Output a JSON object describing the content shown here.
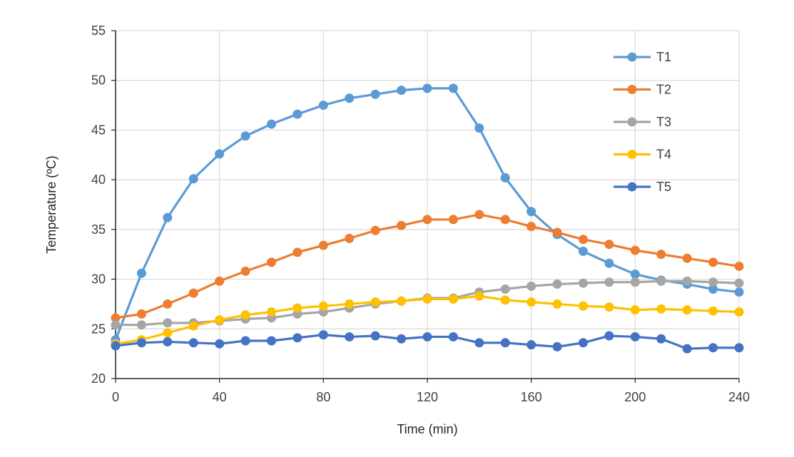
{
  "chart_data": {
    "type": "line",
    "title": "",
    "xlabel": "Time (min)",
    "ylabel": "Temperature (ºC)",
    "xlim": [
      0,
      240
    ],
    "ylim": [
      20,
      55
    ],
    "xticks": [
      0,
      40,
      80,
      120,
      160,
      200,
      240
    ],
    "yticks": [
      20,
      25,
      30,
      35,
      40,
      45,
      50,
      55
    ],
    "grid": true,
    "legend_position": "right",
    "x": [
      0,
      10,
      20,
      30,
      40,
      50,
      60,
      70,
      80,
      90,
      100,
      110,
      120,
      130,
      140,
      150,
      160,
      170,
      180,
      190,
      200,
      210,
      220,
      230,
      240
    ],
    "series": [
      {
        "name": "T1",
        "color": "#5B9BD5",
        "values": [
          23.9,
          30.6,
          36.2,
          40.1,
          42.6,
          44.4,
          45.6,
          46.6,
          47.5,
          48.2,
          48.6,
          49.0,
          49.2,
          49.2,
          45.2,
          40.2,
          36.8,
          34.5,
          32.8,
          31.6,
          30.5,
          29.9,
          29.5,
          29.0,
          28.7
        ]
      },
      {
        "name": "T2",
        "color": "#ED7D31",
        "values": [
          26.1,
          26.5,
          27.5,
          28.6,
          29.8,
          30.8,
          31.7,
          32.7,
          33.4,
          34.1,
          34.9,
          35.4,
          36.0,
          36.0,
          36.5,
          36.0,
          35.3,
          34.7,
          34.0,
          33.5,
          32.9,
          32.5,
          32.1,
          31.7,
          31.3
        ]
      },
      {
        "name": "T3",
        "color": "#A5A5A5",
        "values": [
          25.4,
          25.4,
          25.6,
          25.6,
          25.8,
          26.0,
          26.1,
          26.5,
          26.7,
          27.1,
          27.5,
          27.8,
          28.1,
          28.1,
          28.7,
          29.0,
          29.3,
          29.5,
          29.6,
          29.7,
          29.7,
          29.8,
          29.8,
          29.7,
          29.6
        ]
      },
      {
        "name": "T4",
        "color": "#FFC000",
        "values": [
          23.5,
          23.9,
          24.6,
          25.3,
          25.9,
          26.4,
          26.7,
          27.1,
          27.3,
          27.5,
          27.7,
          27.8,
          28.0,
          28.0,
          28.3,
          27.9,
          27.7,
          27.5,
          27.3,
          27.2,
          26.9,
          27.0,
          26.9,
          26.8,
          26.7
        ]
      },
      {
        "name": "T5",
        "color": "#4472C4",
        "values": [
          23.3,
          23.6,
          23.7,
          23.6,
          23.5,
          23.8,
          23.8,
          24.1,
          24.4,
          24.2,
          24.3,
          24.0,
          24.2,
          24.2,
          23.6,
          23.6,
          23.4,
          23.2,
          23.6,
          24.3,
          24.2,
          24.0,
          23.0,
          23.1,
          23.1
        ]
      }
    ]
  }
}
